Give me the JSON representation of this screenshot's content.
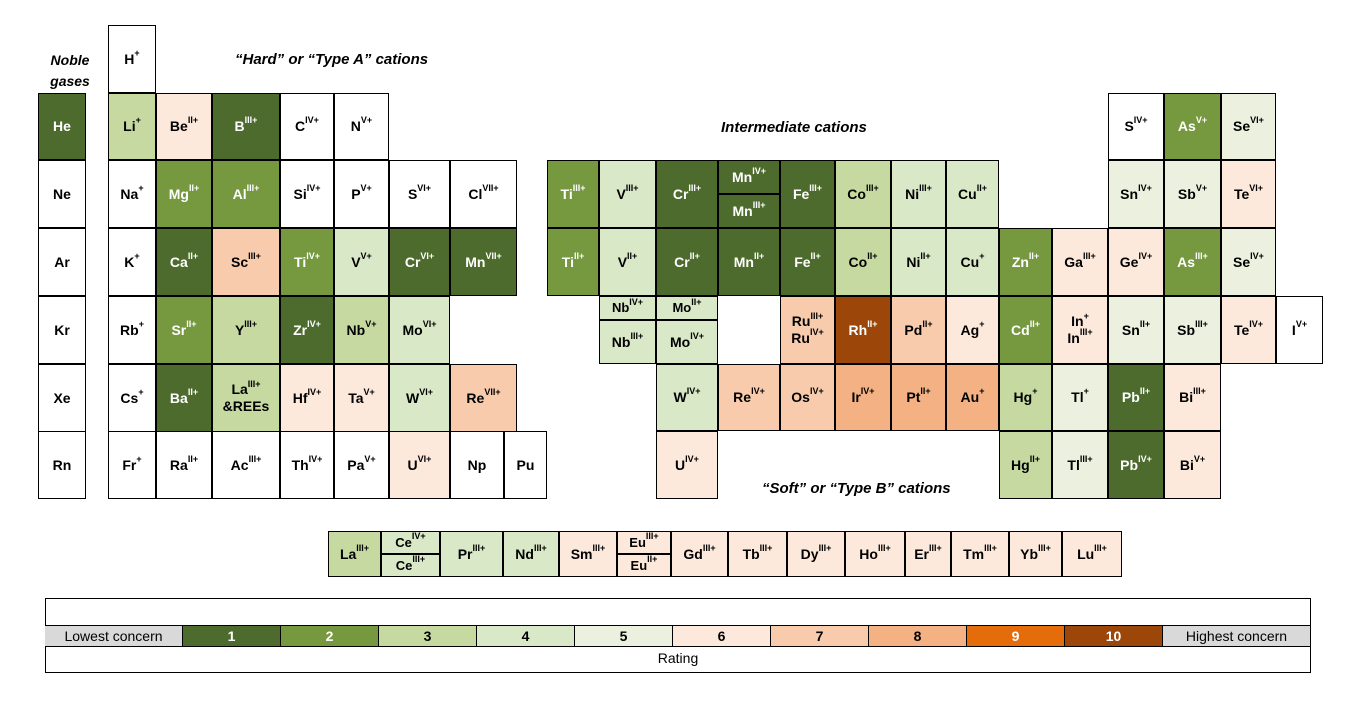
{
  "labels": {
    "noble_gases": "Noble gases",
    "hard": "“Hard” or “Type A” cations",
    "intermediate": "Intermediate cations",
    "soft": "“Soft” or “Type B” cations"
  },
  "palette": {
    "0": "#ffffff",
    "1": "#4e6b2e",
    "2": "#76983f",
    "3": "#c5d9a0",
    "4": "#d9e8c7",
    "5": "#ebf1de",
    "6": "#fde9dc",
    "7": "#f8cbad",
    "8": "#f4b183",
    "9": "#e46c0a",
    "10": "#9c4709"
  },
  "legend": {
    "low_label": "Lowest concern",
    "high_label": "Highest concern",
    "rating_label": "Rating",
    "levels": [
      1,
      2,
      3,
      4,
      5,
      6,
      7,
      8,
      9,
      10
    ]
  },
  "cells": [
    {
      "l": "He",
      "r": 1
    },
    {
      "l": "Ne",
      "r": 0
    },
    {
      "l": "Ar",
      "r": 0
    },
    {
      "l": "Kr",
      "r": 0
    },
    {
      "l": "Xe",
      "r": 0
    },
    {
      "l": "Rn",
      "r": 0
    },
    {
      "l": "H+",
      "r": 0
    },
    {
      "l": "Li+",
      "r": 3
    },
    {
      "l": "Na+",
      "r": 0
    },
    {
      "l": "K+",
      "r": 0
    },
    {
      "l": "Rb+",
      "r": 0
    },
    {
      "l": "Cs+",
      "r": 0
    },
    {
      "l": "Fr+",
      "r": 0
    },
    {
      "l": "BeII+",
      "r": 6
    },
    {
      "l": "MgII+",
      "r": 2
    },
    {
      "l": "CaII+",
      "r": 1
    },
    {
      "l": "SrII+",
      "r": 2
    },
    {
      "l": "BaII+",
      "r": 1
    },
    {
      "l": "RaII+",
      "r": 0
    },
    {
      "l": "BIII+",
      "r": 1
    },
    {
      "l": "AlIII+",
      "r": 2
    },
    {
      "l": "ScIII+",
      "r": 7
    },
    {
      "l": "YIII+",
      "r": 3
    },
    {
      "l": "LaIII+|&REEs",
      "r": 3
    },
    {
      "l": "AcIII+",
      "r": 0
    },
    {
      "l": "CIV+",
      "r": 0
    },
    {
      "l": "SiIV+",
      "r": 0
    },
    {
      "l": "TiIV+",
      "r": 2
    },
    {
      "l": "ZrIV+",
      "r": 1
    },
    {
      "l": "HfIV+",
      "r": 6
    },
    {
      "l": "ThIV+",
      "r": 0
    },
    {
      "l": "NV+",
      "r": 0
    },
    {
      "l": "PV+",
      "r": 0
    },
    {
      "l": "VV+",
      "r": 4
    },
    {
      "l": "NbV+",
      "r": 3
    },
    {
      "l": "TaV+",
      "r": 6
    },
    {
      "l": "PaV+",
      "r": 0
    },
    {
      "l": "SVI+",
      "r": 0
    },
    {
      "l": "CrVI+",
      "r": 1
    },
    {
      "l": "MoVI+",
      "r": 4
    },
    {
      "l": "WVI+",
      "r": 4
    },
    {
      "l": "UVI+",
      "r": 6
    },
    {
      "l": "ClVII+",
      "r": 0
    },
    {
      "l": "MnVII+",
      "r": 1
    },
    {
      "l": "ReVII+",
      "r": 7
    },
    {
      "l": "Np",
      "r": 0
    },
    {
      "l": "Pu",
      "r": 0
    },
    {
      "l": "TiIII+",
      "r": 2
    },
    {
      "l": "TiII+",
      "r": 2
    },
    {
      "l": "VIII+",
      "r": 4
    },
    {
      "l": "VII+",
      "r": 4
    },
    {
      "l": "CrIII+",
      "r": 1
    },
    {
      "l": "CrII+",
      "r": 1
    },
    {
      "l": "MnIV+",
      "r": 1
    },
    {
      "l": "MnIII+",
      "r": 1
    },
    {
      "l": "MnII+",
      "r": 1
    },
    {
      "l": "FeIII+",
      "r": 1
    },
    {
      "l": "FeII+",
      "r": 1
    },
    {
      "l": "CoIII+",
      "r": 3
    },
    {
      "l": "CoII+",
      "r": 3
    },
    {
      "l": "NiIII+",
      "r": 4
    },
    {
      "l": "NiII+",
      "r": 4
    },
    {
      "l": "CuII+",
      "r": 4
    },
    {
      "l": "Cu+",
      "r": 4
    },
    {
      "l": "NbIV+",
      "r": 4
    },
    {
      "l": "NbIII+",
      "r": 4
    },
    {
      "l": "MoII+",
      "r": 4
    },
    {
      "l": "MoIV+",
      "r": 4
    },
    {
      "l": "WIV+",
      "r": 4
    },
    {
      "l": "UIV+",
      "r": 6
    },
    {
      "l": "RuIII+|RuIV+",
      "r": 7
    },
    {
      "l": "RhII+",
      "r": 10
    },
    {
      "l": "PdII+",
      "r": 7
    },
    {
      "l": "Ag+",
      "r": 6
    },
    {
      "l": "ReIV+",
      "r": 7
    },
    {
      "l": "OsIV+",
      "r": 7
    },
    {
      "l": "IrIV+",
      "r": 8
    },
    {
      "l": "PtII+",
      "r": 8
    },
    {
      "l": "Au+",
      "r": 8
    },
    {
      "l": "ZnII+",
      "r": 2
    },
    {
      "l": "CdII+",
      "r": 2
    },
    {
      "l": "Hg+",
      "r": 3
    },
    {
      "l": "HgII+",
      "r": 3
    },
    {
      "l": "GaIII+",
      "r": 6
    },
    {
      "l": "In+|InIII+",
      "r": 6
    },
    {
      "l": "Tl+",
      "r": 5
    },
    {
      "l": "TlIII+",
      "r": 5
    },
    {
      "l": "SnIV+",
      "r": 5
    },
    {
      "l": "GeIV+",
      "r": 6
    },
    {
      "l": "SnII+",
      "r": 5
    },
    {
      "l": "PbII+",
      "r": 1
    },
    {
      "l": "PbIV+",
      "r": 1
    },
    {
      "l": "AsV+",
      "r": 2
    },
    {
      "l": "SbV+",
      "r": 5
    },
    {
      "l": "AsIII+",
      "r": 2
    },
    {
      "l": "SbIII+",
      "r": 5
    },
    {
      "l": "BiIII+",
      "r": 6
    },
    {
      "l": "BiV+",
      "r": 6
    },
    {
      "l": "SIV+",
      "r": 0
    },
    {
      "l": "SeVI+",
      "r": 5
    },
    {
      "l": "TeVI+",
      "r": 6
    },
    {
      "l": "SeIV+",
      "r": 5
    },
    {
      "l": "TeIV+",
      "r": 6
    },
    {
      "l": "IV+",
      "r": 0
    },
    {
      "l": "LaIII+",
      "r": 3
    },
    {
      "l": "CeIV+",
      "r": 4
    },
    {
      "l": "CeIII+",
      "r": 4
    },
    {
      "l": "PrIII+",
      "r": 4
    },
    {
      "l": "NdIII+",
      "r": 4
    },
    {
      "l": "SmIII+",
      "r": 6
    },
    {
      "l": "EuIII+",
      "r": 6
    },
    {
      "l": "EuII+",
      "r": 6
    },
    {
      "l": "GdIII+",
      "r": 6
    },
    {
      "l": "TbIII+",
      "r": 6
    },
    {
      "l": "DyIII+",
      "r": 6
    },
    {
      "l": "HoIII+",
      "r": 6
    },
    {
      "l": "ErIII+",
      "r": 6
    },
    {
      "l": "TmIII+",
      "r": 6
    },
    {
      "l": "YbIII+",
      "r": 6
    },
    {
      "l": "LuIII+",
      "r": 6
    }
  ]
}
